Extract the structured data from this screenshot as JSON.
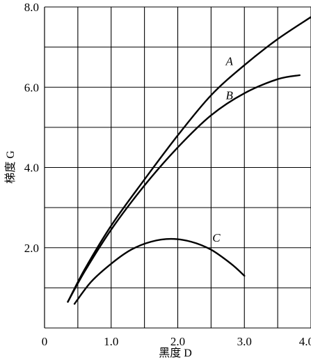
{
  "chart_data": {
    "type": "line",
    "xlabel": "黑度 D",
    "ylabel": "梯度 G",
    "xlim": [
      0,
      4.0
    ],
    "ylim": [
      0,
      8.0
    ],
    "x_tick_labels": [
      "0",
      "1.0",
      "2.0",
      "3.0",
      "4.0"
    ],
    "y_tick_labels": [
      "2.0",
      "4.0",
      "6.0",
      "8.0"
    ],
    "grid": true,
    "series": [
      {
        "name": "A",
        "x": [
          0.35,
          0.6,
          1.0,
          1.5,
          2.0,
          2.5,
          3.0,
          3.5,
          4.0
        ],
        "y": [
          0.65,
          1.45,
          2.55,
          3.7,
          4.8,
          5.8,
          6.55,
          7.2,
          7.75
        ]
      },
      {
        "name": "B",
        "x": [
          0.35,
          0.6,
          1.0,
          1.5,
          2.0,
          2.5,
          3.0,
          3.5,
          3.83
        ],
        "y": [
          0.65,
          1.4,
          2.45,
          3.55,
          4.5,
          5.3,
          5.85,
          6.2,
          6.3
        ]
      },
      {
        "name": "C",
        "x": [
          0.45,
          0.7,
          1.0,
          1.3,
          1.6,
          1.9,
          2.2,
          2.5,
          2.8,
          3.0
        ],
        "y": [
          0.6,
          1.15,
          1.6,
          1.95,
          2.15,
          2.22,
          2.15,
          1.95,
          1.6,
          1.3
        ]
      }
    ]
  }
}
